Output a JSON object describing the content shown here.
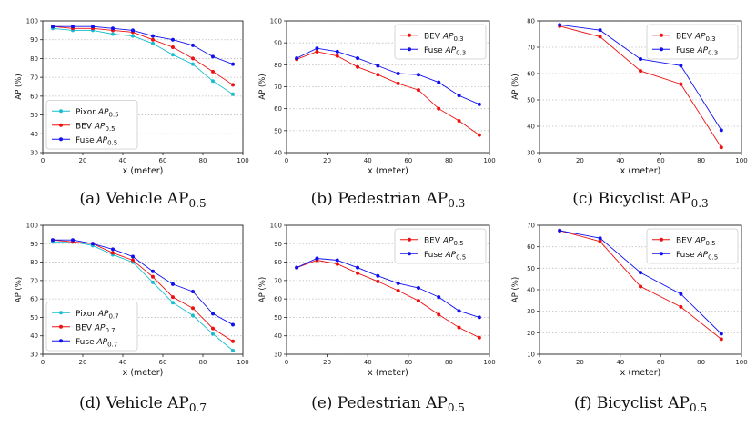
{
  "chart_data": [
    {
      "type": "line",
      "ylabel": "AP (%)",
      "xlabel": "x (meter)",
      "xlim": [
        0,
        100
      ],
      "ylim": [
        30,
        100
      ],
      "xticks": [
        0,
        20,
        40,
        60,
        80,
        100
      ],
      "yticks": [
        30,
        40,
        50,
        60,
        70,
        80,
        90,
        100
      ],
      "grid": "horizontal",
      "legend_position": "bottom-left",
      "caption": {
        "prefix": "(a) Vehicle AP",
        "sub": "0.5"
      },
      "x": [
        5,
        15,
        25,
        35,
        45,
        55,
        65,
        75,
        85,
        95
      ],
      "series": [
        {
          "label": "Pixor",
          "sub": "0.5",
          "color": "#17becf",
          "values": [
            96,
            95,
            95,
            93,
            92,
            88,
            82,
            77,
            68,
            61
          ]
        },
        {
          "label": "BEV",
          "sub": "0.5",
          "color": "#ee1111",
          "values": [
            97,
            96,
            96,
            95,
            94,
            90,
            86,
            80,
            73,
            66
          ]
        },
        {
          "label": "Fuse",
          "sub": "0.5",
          "color": "#1111ee",
          "values": [
            97,
            97,
            97,
            96,
            95,
            92,
            90,
            87,
            81,
            77
          ]
        }
      ]
    },
    {
      "type": "line",
      "ylabel": "AP (%)",
      "xlabel": "x (meter)",
      "xlim": [
        0,
        100
      ],
      "ylim": [
        40,
        100
      ],
      "xticks": [
        0,
        20,
        40,
        60,
        80,
        100
      ],
      "yticks": [
        40,
        50,
        60,
        70,
        80,
        90,
        100
      ],
      "grid": "horizontal",
      "legend_position": "top-right",
      "caption": {
        "prefix": "(b) Pedestrian AP",
        "sub": "0.3"
      },
      "x": [
        5,
        15,
        25,
        35,
        45,
        55,
        65,
        75,
        85,
        95
      ],
      "series": [
        {
          "label": "BEV",
          "sub": "0.3",
          "color": "#ee1111",
          "values": [
            82.5,
            86,
            84,
            79,
            75.5,
            71.5,
            68.5,
            60,
            54.5,
            48
          ]
        },
        {
          "label": "Fuse",
          "sub": "0.3",
          "color": "#1111ee",
          "values": [
            83,
            87.5,
            86,
            83,
            79.5,
            76,
            75.5,
            72,
            66,
            62
          ]
        }
      ]
    },
    {
      "type": "line",
      "ylabel": "AP (%)",
      "xlabel": "x (meter)",
      "xlim": [
        0,
        100
      ],
      "ylim": [
        30,
        80
      ],
      "xticks": [
        0,
        20,
        40,
        60,
        80,
        100
      ],
      "yticks": [
        30,
        40,
        50,
        60,
        70,
        80
      ],
      "grid": "horizontal",
      "legend_position": "top-right",
      "caption": {
        "prefix": "(c) Bicyclist AP",
        "sub": "0.3"
      },
      "x": [
        10,
        30,
        50,
        70,
        90
      ],
      "series": [
        {
          "label": "BEV",
          "sub": "0.3",
          "color": "#ee1111",
          "values": [
            78,
            74,
            61,
            56,
            32
          ]
        },
        {
          "label": "Fuse",
          "sub": "0.3",
          "color": "#1111ee",
          "values": [
            78.5,
            76.5,
            65.5,
            63,
            38.5
          ]
        }
      ]
    },
    {
      "type": "line",
      "ylabel": "AP (%)",
      "xlabel": "x (meter)",
      "xlim": [
        0,
        100
      ],
      "ylim": [
        30,
        100
      ],
      "xticks": [
        0,
        20,
        40,
        60,
        80,
        100
      ],
      "yticks": [
        30,
        40,
        50,
        60,
        70,
        80,
        90,
        100
      ],
      "grid": "horizontal",
      "legend_position": "bottom-left",
      "caption": {
        "prefix": "(d) Vehicle AP",
        "sub": "0.7"
      },
      "x": [
        5,
        15,
        25,
        35,
        45,
        55,
        65,
        75,
        85,
        95
      ],
      "series": [
        {
          "label": "Pixor",
          "sub": "0.7",
          "color": "#17becf",
          "values": [
            91,
            91,
            89,
            84,
            80,
            69,
            58,
            51,
            41,
            32
          ]
        },
        {
          "label": "BEV",
          "sub": "0.7",
          "color": "#ee1111",
          "values": [
            92,
            91,
            90,
            85,
            81,
            72,
            61,
            55,
            44,
            37
          ]
        },
        {
          "label": "Fuse",
          "sub": "0.7",
          "color": "#1111ee",
          "values": [
            92,
            92,
            90,
            87,
            83,
            75,
            68,
            64,
            52,
            46
          ]
        }
      ]
    },
    {
      "type": "line",
      "ylabel": "AP (%)",
      "xlabel": "x (meter)",
      "xlim": [
        0,
        100
      ],
      "ylim": [
        30,
        100
      ],
      "xticks": [
        0,
        20,
        40,
        60,
        80,
        100
      ],
      "yticks": [
        30,
        40,
        50,
        60,
        70,
        80,
        90,
        100
      ],
      "grid": "horizontal",
      "legend_position": "top-right",
      "caption": {
        "prefix": "(e) Pedestrian AP",
        "sub": "0.5"
      },
      "x": [
        5,
        15,
        25,
        35,
        45,
        55,
        65,
        75,
        85,
        95
      ],
      "series": [
        {
          "label": "BEV",
          "sub": "0.5",
          "color": "#ee1111",
          "values": [
            77,
            81,
            79,
            74,
            69.5,
            64.5,
            59,
            51.5,
            44.5,
            39
          ]
        },
        {
          "label": "Fuse",
          "sub": "0.5",
          "color": "#1111ee",
          "values": [
            77,
            82,
            81,
            77,
            72.5,
            68.5,
            66,
            61,
            53.5,
            50
          ]
        }
      ]
    },
    {
      "type": "line",
      "ylabel": "AP (%)",
      "xlabel": "x (meter)",
      "xlim": [
        0,
        100
      ],
      "ylim": [
        10,
        70
      ],
      "xticks": [
        0,
        20,
        40,
        60,
        80,
        100
      ],
      "yticks": [
        10,
        20,
        30,
        40,
        50,
        60,
        70
      ],
      "grid": "horizontal",
      "legend_position": "top-right",
      "caption": {
        "prefix": "(f) Bicyclist AP",
        "sub": "0.5"
      },
      "x": [
        10,
        30,
        50,
        70,
        90
      ],
      "series": [
        {
          "label": "BEV",
          "sub": "0.5",
          "color": "#ee1111",
          "values": [
            67.5,
            62.5,
            41.5,
            32,
            17
          ]
        },
        {
          "label": "Fuse",
          "sub": "0.5",
          "color": "#1111ee",
          "values": [
            67.5,
            64,
            48,
            38,
            19.5
          ]
        }
      ]
    }
  ]
}
